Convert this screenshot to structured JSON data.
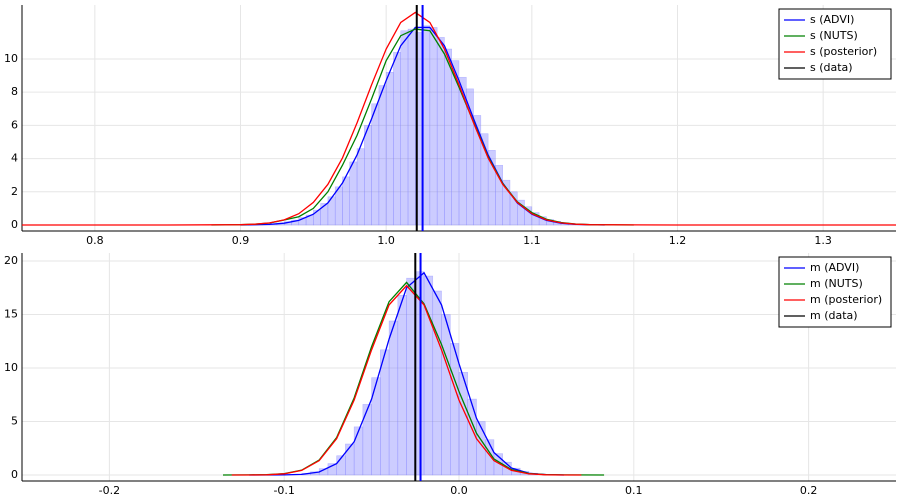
{
  "chart_data": [
    {
      "type": "histogram_density",
      "xlim": [
        0.75,
        1.35
      ],
      "ylim": [
        -0.36,
        13.25
      ],
      "xticks": [
        0.8,
        0.9,
        {
          "value": 1,
          "label": "1.0"
        },
        1.1,
        1.2,
        1.3
      ],
      "yticks": [
        0,
        2,
        4,
        6,
        8,
        10
      ],
      "grid": true,
      "legend": "top-right",
      "histogram": {
        "color": "#8080ff",
        "bins": [
          0.9,
          0.905,
          0.91,
          0.915,
          0.92,
          0.925,
          0.93,
          0.935,
          0.94,
          0.945,
          0.95,
          0.955,
          0.96,
          0.965,
          0.97,
          0.975,
          0.98,
          0.985,
          0.99,
          0.995,
          1.0,
          1.005,
          1.01,
          1.015,
          1.02,
          1.025,
          1.03,
          1.035,
          1.04,
          1.045,
          1.05,
          1.055,
          1.06,
          1.065,
          1.07,
          1.075,
          1.08,
          1.085,
          1.09,
          1.095,
          1.1,
          1.105,
          1.11,
          1.115,
          1.12,
          1.125,
          1.13,
          1.135,
          1.14,
          1.145,
          1.15
        ],
        "counts": [
          0.01,
          0.02,
          0.03,
          0.05,
          0.08,
          0.12,
          0.2,
          0.3,
          0.45,
          0.6,
          0.9,
          1.3,
          1.7,
          2.3,
          2.9,
          3.8,
          4.6,
          6.0,
          7.3,
          8.4,
          9.2,
          10.4,
          11.7,
          11.8,
          11.6,
          12.0,
          11.9,
          11.3,
          10.6,
          9.9,
          8.9,
          8.2,
          6.6,
          5.5,
          4.5,
          3.6,
          2.7,
          2.0,
          1.5,
          1.1,
          0.75,
          0.5,
          0.33,
          0.22,
          0.14,
          0.09,
          0.05,
          0.03,
          0.02,
          0.01
        ]
      },
      "series": [
        {
          "name": "s (ADVI)",
          "color": "#0000ff",
          "vline": 1.025,
          "x": [
            0.9,
            0.91,
            0.92,
            0.93,
            0.94,
            0.95,
            0.96,
            0.97,
            0.98,
            0.99,
            1.0,
            1.01,
            1.02,
            1.03,
            1.04,
            1.05,
            1.06,
            1.07,
            1.08,
            1.09,
            1.1,
            1.11,
            1.12,
            1.13,
            1.14,
            1.15
          ],
          "values": [
            0,
            0.02,
            0.04,
            0.11,
            0.28,
            0.65,
            1.33,
            2.53,
            4.22,
            6.4,
            8.7,
            10.8,
            11.9,
            11.9,
            10.8,
            8.7,
            6.4,
            4.22,
            2.53,
            1.33,
            0.65,
            0.28,
            0.11,
            0.04,
            0.02,
            0
          ]
        },
        {
          "name": "s (NUTS)",
          "color": "#008000",
          "x": [
            0.88,
            0.9,
            0.91,
            0.92,
            0.93,
            0.94,
            0.95,
            0.96,
            0.97,
            0.98,
            0.99,
            1.0,
            1.01,
            1.02,
            1.03,
            1.04,
            1.05,
            1.06,
            1.07,
            1.08,
            1.09,
            1.1,
            1.11,
            1.12,
            1.13,
            1.14,
            1.17
          ],
          "values": [
            0,
            0.02,
            0.05,
            0.12,
            0.3,
            0.5,
            1.0,
            2.0,
            3.6,
            5.4,
            7.6,
            9.9,
            11.4,
            11.8,
            11.7,
            10.3,
            8.3,
            6.2,
            4.1,
            2.5,
            1.4,
            0.75,
            0.35,
            0.15,
            0.06,
            0.02,
            0
          ]
        },
        {
          "name": "s (posterior)",
          "color": "#ff0000",
          "x": [
            0.75,
            0.85,
            0.9,
            0.91,
            0.92,
            0.93,
            0.94,
            0.95,
            0.96,
            0.97,
            0.98,
            0.99,
            1.0,
            1.01,
            1.02,
            1.03,
            1.04,
            1.05,
            1.06,
            1.07,
            1.08,
            1.09,
            1.1,
            1.11,
            1.12,
            1.13,
            1.14,
            1.2,
            1.35
          ],
          "values": [
            0,
            0,
            0.02,
            0.05,
            0.13,
            0.31,
            0.68,
            1.36,
            2.45,
            4.04,
            6.15,
            8.45,
            10.6,
            12.2,
            12.8,
            12.2,
            10.6,
            8.45,
            6.15,
            4.04,
            2.45,
            1.36,
            0.68,
            0.31,
            0.13,
            0.05,
            0.02,
            0,
            0
          ]
        },
        {
          "name": "s (data)",
          "color": "#000000",
          "vline": 1.021
        }
      ]
    },
    {
      "type": "histogram_density",
      "xlim": [
        -0.25,
        0.25
      ],
      "ylim": [
        -0.56,
        20.75
      ],
      "xticks": [
        -0.2,
        -0.1,
        {
          "value": 0,
          "label": "0.0"
        },
        0.1,
        0.2
      ],
      "yticks": [
        0,
        5,
        10,
        15,
        20
      ],
      "grid": true,
      "legend": "top-right",
      "histogram": {
        "color": "#8080ff",
        "bins": [
          -0.09,
          -0.085,
          -0.08,
          -0.075,
          -0.07,
          -0.065,
          -0.06,
          -0.055,
          -0.05,
          -0.045,
          -0.04,
          -0.035,
          -0.03,
          -0.025,
          -0.02,
          -0.015,
          -0.01,
          -0.005,
          0,
          0.005,
          0.01,
          0.015,
          0.02,
          0.025,
          0.03,
          0.035,
          0.04,
          0.045
        ],
        "counts": [
          0.15,
          0.3,
          0.6,
          1.07,
          1.8,
          2.9,
          4.5,
          6.6,
          9.1,
          11.7,
          14.4,
          16.8,
          18.4,
          19,
          18.6,
          17.2,
          15,
          12.3,
          9.6,
          7.1,
          5,
          3.3,
          2,
          1.2,
          0.64,
          0.34,
          0.17
        ]
      },
      "series": [
        {
          "name": "m (ADVI)",
          "color": "#0000ff",
          "vline": -0.022,
          "x": [
            -0.12,
            -0.11,
            -0.1,
            -0.09,
            -0.08,
            -0.07,
            -0.06,
            -0.05,
            -0.04,
            -0.03,
            -0.02,
            -0.01,
            0,
            0.01,
            0.02,
            0.03,
            0.04,
            0.05,
            0.06
          ],
          "values": [
            0,
            0,
            0.01,
            0.06,
            0.28,
            1.07,
            3.1,
            7.1,
            12.7,
            17.5,
            18.9,
            15.9,
            10.4,
            5.3,
            2.1,
            0.65,
            0.16,
            0.03,
            0
          ]
        },
        {
          "name": "m (NUTS)",
          "color": "#008000",
          "x": [
            -0.135,
            -0.12,
            -0.11,
            -0.1,
            -0.09,
            -0.08,
            -0.07,
            -0.06,
            -0.05,
            -0.04,
            -0.03,
            -0.02,
            -0.01,
            0,
            0.01,
            0.02,
            0.03,
            0.04,
            0.05,
            0.06,
            0.083
          ],
          "values": [
            0,
            0.01,
            0.03,
            0.13,
            0.45,
            1.4,
            3.5,
            7.2,
            12,
            16.2,
            18,
            16,
            12.2,
            7.8,
            3.9,
            1.5,
            0.5,
            0.14,
            0.03,
            0.01,
            0
          ]
        },
        {
          "name": "m (posterior)",
          "color": "#ff0000",
          "x": [
            -0.13,
            -0.12,
            -0.11,
            -0.1,
            -0.09,
            -0.08,
            -0.07,
            -0.06,
            -0.05,
            -0.04,
            -0.03,
            -0.02,
            -0.01,
            0,
            0.01,
            0.02,
            0.03,
            0.04,
            0.05,
            0.06,
            0.07
          ],
          "values": [
            0,
            0,
            0.02,
            0.11,
            0.43,
            1.34,
            3.4,
            7,
            11.7,
            15.9,
            17.7,
            15.9,
            11.7,
            7,
            3.4,
            1.34,
            0.43,
            0.11,
            0.02,
            0,
            0
          ]
        },
        {
          "name": "m (data)",
          "color": "#000000",
          "vline": -0.025
        }
      ]
    }
  ]
}
